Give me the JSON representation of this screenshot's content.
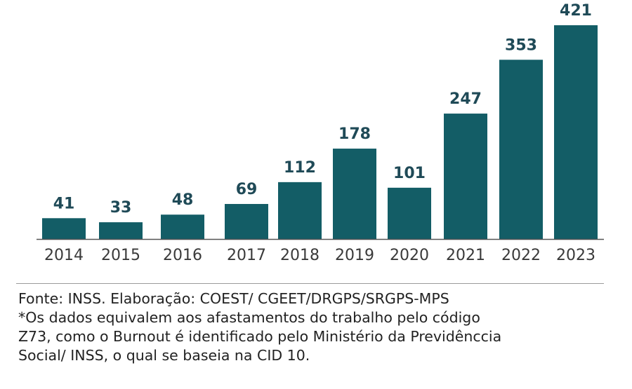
{
  "chart_data": {
    "type": "bar",
    "categories": [
      "2014",
      "2015",
      "2016",
      "2017",
      "2018",
      "2019",
      "2020",
      "2021",
      "2022",
      "2023"
    ],
    "values": [
      41,
      33,
      48,
      69,
      112,
      178,
      101,
      247,
      353,
      421
    ],
    "ylim": [
      0,
      450
    ],
    "grid": false,
    "legend": "none",
    "bar_color": "#135d66",
    "axis_color": "#555555"
  },
  "footnote": {
    "source": "Fonte: INSS. Elaboração: COEST/ CGEET/DRGPS/SRGPS-MPS",
    "note_lines": [
      "*Os dados equivalem aos afastamentos do trabalho pelo código",
      "Z73, como o Burnout é identificado pelo Ministério da Previdênccia",
      "Social/ INSS, o qual se baseia na CID 10."
    ]
  }
}
